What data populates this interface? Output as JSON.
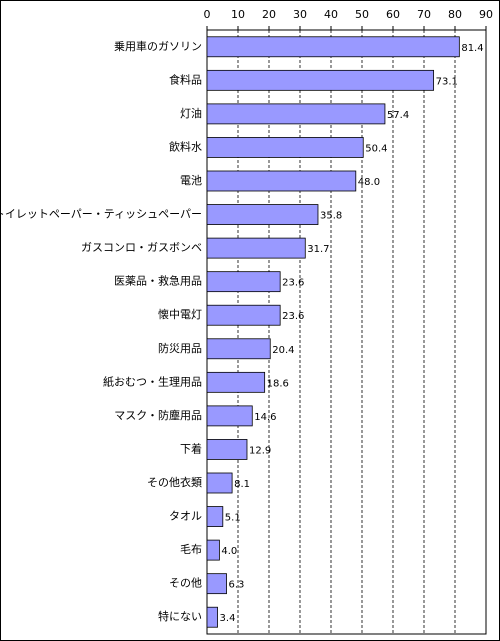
{
  "chart_data": {
    "type": "barh",
    "categories": [
      "乗用車のガソリン",
      "食料品",
      "灯油",
      "飲料水",
      "電池",
      "トイレットペーパー・ティッシュペーパー",
      "ガスコンロ・ガスボンベ",
      "医薬品・救急用品",
      "懐中電灯",
      "防災用品",
      "紙おむつ・生理用品",
      "マスク・防塵用品",
      "下着",
      "その他衣類",
      "タオル",
      "毛布",
      "その他",
      "特にない"
    ],
    "values": [
      81.4,
      73.1,
      57.4,
      50.4,
      48,
      35.8,
      31.7,
      23.6,
      23.6,
      20.4,
      18.6,
      14.6,
      12.9,
      8.1,
      5.1,
      4,
      6.3,
      3.4
    ],
    "value_labels": [
      "81.4",
      "73.1",
      "57.4",
      "50.4",
      "48.0",
      "35.8",
      "31.7",
      "23.6",
      "23.6",
      "20.4",
      "18.6",
      "14.6",
      "12.9",
      "8.1",
      "5.1",
      "4.0",
      "6.3",
      "3.4"
    ],
    "color": "#9999ff",
    "xlim": [
      0,
      90
    ],
    "xticks": [
      0,
      10,
      20,
      30,
      40,
      50,
      60,
      70,
      80,
      90
    ],
    "grid": true
  }
}
